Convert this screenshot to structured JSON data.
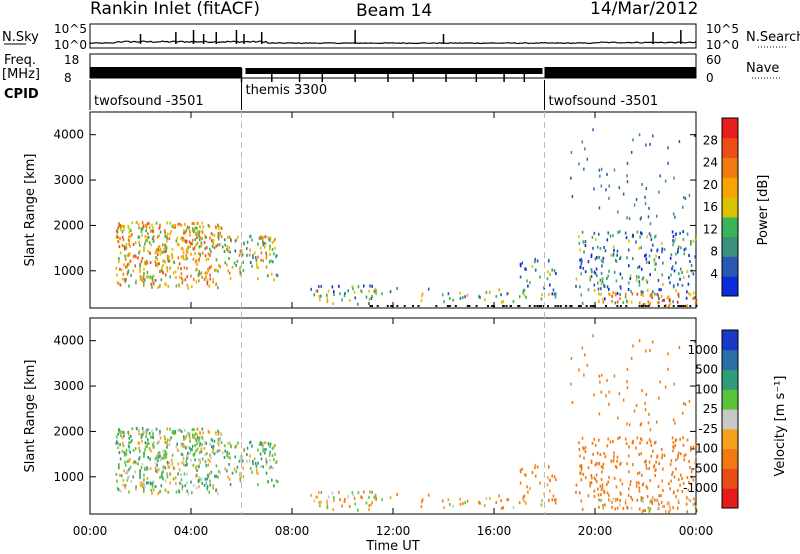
{
  "header": {
    "station": "Rankin Inlet (fitACF)",
    "beam": "Beam 14",
    "date": "14/Mar/2012"
  },
  "top_panels": {
    "nsky_label": "N.Sky",
    "nsky_ticks": [
      "10^5",
      "10^0"
    ],
    "nsearch_label": "N.Search",
    "nsearch_ticks": [
      "10^5",
      "10^0"
    ],
    "freq_label": "Freq.",
    "freq_unit": "[MHz]",
    "freq_ticks": [
      "18",
      "8"
    ],
    "nave_label": "Nave",
    "nave_ticks": [
      "60",
      "0"
    ],
    "cpid_label": "CPID",
    "cpid_segments": [
      {
        "name": "twofsound -3501",
        "start_hour": 0,
        "end_hour": 6
      },
      {
        "name": "themis 3300",
        "start_hour": 6,
        "end_hour": 18
      },
      {
        "name": "twofsound -3501",
        "start_hour": 18,
        "end_hour": 24
      }
    ]
  },
  "x_axis": {
    "label": "Time UT",
    "ticks": [
      "00:00",
      "04:00",
      "08:00",
      "12:00",
      "16:00",
      "20:00",
      "00:00"
    ],
    "range_hours": [
      0,
      24
    ]
  },
  "y_axis": {
    "label": "Slant Range [km]",
    "ticks": [
      "1000",
      "2000",
      "3000",
      "4000"
    ],
    "range_km": [
      180,
      4500
    ]
  },
  "power_colorbar": {
    "label": "Power [dB]",
    "ticks": [
      "4",
      "8",
      "12",
      "16",
      "20",
      "24",
      "28"
    ],
    "colors": [
      "#0c2bd9",
      "#2c57b3",
      "#3a8f7e",
      "#39b45a",
      "#d8c400",
      "#f5a400",
      "#f07c10",
      "#ed4d18",
      "#e81e1e"
    ]
  },
  "velocity_colorbar": {
    "label": "Velocity [m s⁻¹]",
    "ticks": [
      "1000",
      "500",
      "100",
      "25",
      "-25",
      "-100",
      "-500",
      "-1000"
    ],
    "colors": [
      "#1838c8",
      "#2c6fa8",
      "#2f9c7a",
      "#58c43a",
      "#c8c8c8",
      "#f3a21a",
      "#ef7a14",
      "#e94c17",
      "#e31b1b"
    ]
  },
  "chart_data": {
    "type": "heatmap",
    "title": "Rankin Inlet (fitACF)",
    "xlabel": "Time UT",
    "x_range": [
      0,
      24
    ],
    "panels": [
      {
        "quantity": "Power",
        "ylabel": "Slant Range [km]",
        "ylim": [
          180,
          4500
        ],
        "colorbar_label": "Power [dB]",
        "colorbar_range": [
          0,
          30
        ]
      },
      {
        "quantity": "Velocity",
        "ylabel": "Slant Range [km]",
        "ylim": [
          180,
          4500
        ],
        "colorbar_label": "Velocity [m s⁻¹]",
        "colorbar_range": [
          -1000,
          1000
        ]
      }
    ],
    "scatter_regions": [
      {
        "t_start": 1.0,
        "t_end": 5.2,
        "r_min": 650,
        "r_max": 2100,
        "density": 0.85,
        "power_mean": 18,
        "velocity_mean": 40
      },
      {
        "t_start": 5.2,
        "t_end": 7.4,
        "r_min": 800,
        "r_max": 1800,
        "density": 0.55,
        "power_mean": 14,
        "velocity_mean": 60
      },
      {
        "t_start": 8.6,
        "t_end": 11.4,
        "r_min": 280,
        "r_max": 700,
        "density": 0.45,
        "power_mean": 10,
        "velocity_mean": -60
      },
      {
        "t_start": 11.5,
        "t_end": 17.9,
        "r_min": 300,
        "r_max": 650,
        "density": 0.18,
        "power_mean": 12,
        "velocity_mean": -90
      },
      {
        "t_start": 17.0,
        "t_end": 18.5,
        "r_min": 450,
        "r_max": 1300,
        "density": 0.3,
        "power_mean": 8,
        "velocity_mean": -150
      },
      {
        "t_start": 19.2,
        "t_end": 24.0,
        "r_min": 300,
        "r_max": 1900,
        "density": 0.35,
        "power_mean": 7,
        "velocity_mean": -250
      },
      {
        "t_start": 20.0,
        "t_end": 24.0,
        "r_min": 250,
        "r_max": 550,
        "density": 0.5,
        "power_mean": 22,
        "velocity_mean": -80
      }
    ],
    "nsky_hours_spikes": [
      2.0,
      3.4,
      4.1,
      4.5,
      5.0,
      5.8,
      6.1,
      6.8,
      10.5,
      14.0,
      22.3,
      23.4
    ],
    "nave_dips_hours": [
      6.0,
      7.2,
      8.3,
      9.2,
      10.5,
      11.8,
      12.8,
      14.1,
      15.3,
      16.4,
      17.2
    ]
  }
}
